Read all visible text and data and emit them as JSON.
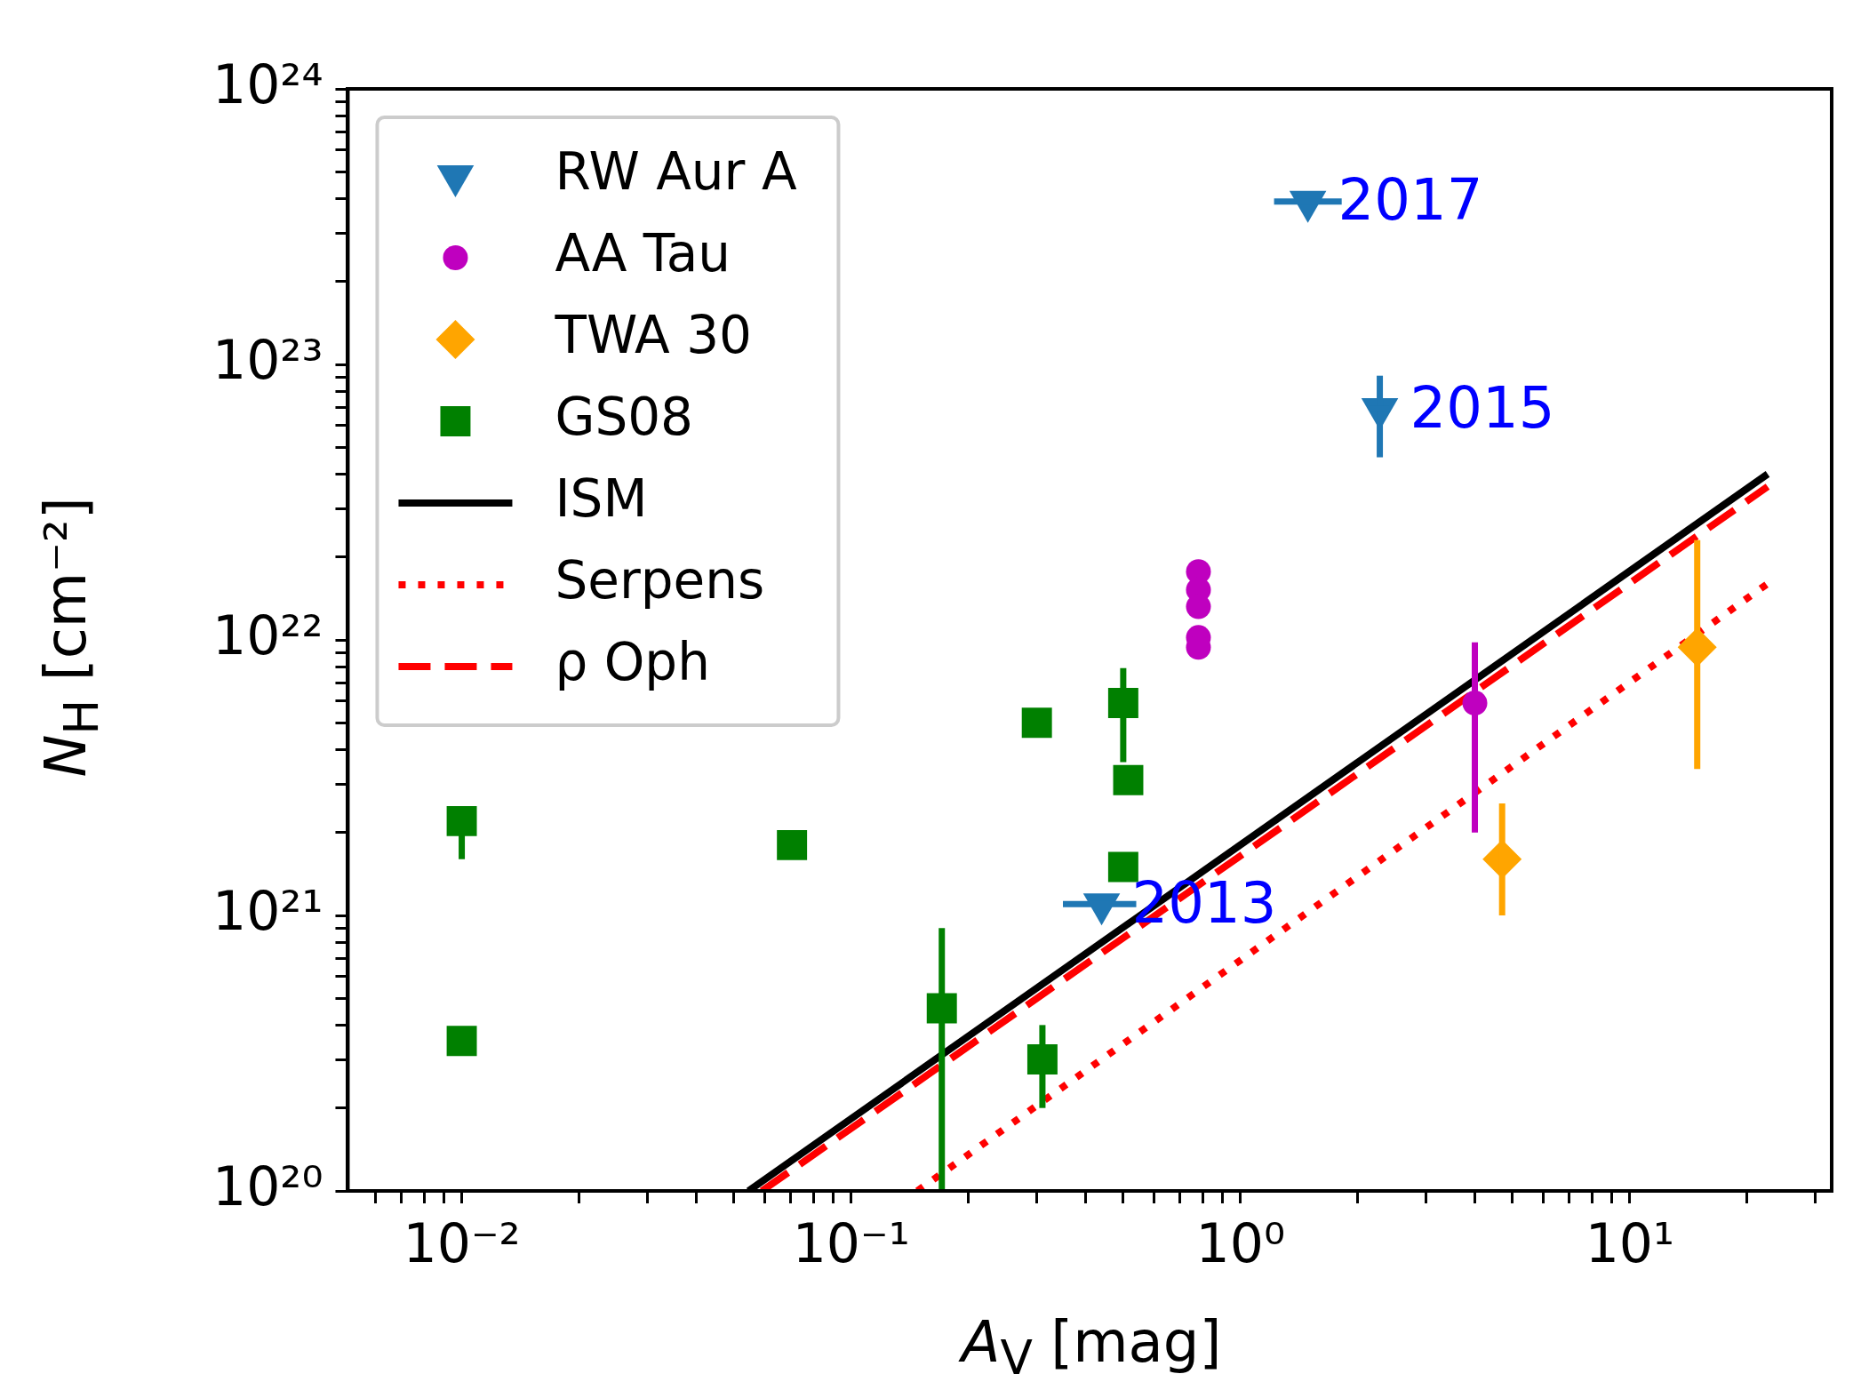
{
  "chart_data": {
    "type": "scatter",
    "xlabel": "A$_{V}$ [mag]",
    "ylabel": "N$_{H}$ [cm⁻²]",
    "log": "xy",
    "grid": false,
    "legend": "top left",
    "xlim": [
      0.0051,
      33
    ],
    "ylim": [
      1e+20,
      1e+24
    ],
    "xticks": [
      {
        "value": 0.006,
        "label": null
      },
      {
        "value": 0.007,
        "label": null
      },
      {
        "value": 0.008,
        "label": null
      },
      {
        "value": 0.009,
        "label": null
      },
      {
        "value": 0.01,
        "label": "10⁻²"
      },
      {
        "value": 0.02,
        "label": null
      },
      {
        "value": 0.03,
        "label": null
      },
      {
        "value": 0.04,
        "label": null
      },
      {
        "value": 0.05,
        "label": null
      },
      {
        "value": 0.06,
        "label": null
      },
      {
        "value": 0.07,
        "label": null
      },
      {
        "value": 0.08,
        "label": null
      },
      {
        "value": 0.09,
        "label": null
      },
      {
        "value": 0.1,
        "label": "10⁻¹"
      },
      {
        "value": 0.2,
        "label": null
      },
      {
        "value": 0.3,
        "label": null
      },
      {
        "value": 0.4,
        "label": null
      },
      {
        "value": 0.5,
        "label": null
      },
      {
        "value": 0.6,
        "label": null
      },
      {
        "value": 0.7,
        "label": null
      },
      {
        "value": 0.8,
        "label": null
      },
      {
        "value": 0.9,
        "label": null
      },
      {
        "value": 1,
        "label": "10⁰"
      },
      {
        "value": 2,
        "label": null
      },
      {
        "value": 3,
        "label": null
      },
      {
        "value": 4,
        "label": null
      },
      {
        "value": 5,
        "label": null
      },
      {
        "value": 6,
        "label": null
      },
      {
        "value": 7,
        "label": null
      },
      {
        "value": 8,
        "label": null
      },
      {
        "value": 9,
        "label": null
      },
      {
        "value": 10,
        "label": "10¹"
      },
      {
        "value": 20,
        "label": null
      },
      {
        "value": 30,
        "label": null
      }
    ],
    "yticks": [
      {
        "value": 1e+20,
        "label": "10²⁰"
      },
      {
        "value": 2e+20,
        "label": null
      },
      {
        "value": 3e+20,
        "label": null
      },
      {
        "value": 4e+20,
        "label": null
      },
      {
        "value": 5e+20,
        "label": null
      },
      {
        "value": 6e+20,
        "label": null
      },
      {
        "value": 7e+20,
        "label": null
      },
      {
        "value": 8e+20,
        "label": null
      },
      {
        "value": 9e+20,
        "label": null
      },
      {
        "value": 1e+21,
        "label": "10²¹"
      },
      {
        "value": 2e+21,
        "label": null
      },
      {
        "value": 3e+21,
        "label": null
      },
      {
        "value": 4e+21,
        "label": null
      },
      {
        "value": 5e+21,
        "label": null
      },
      {
        "value": 6e+21,
        "label": null
      },
      {
        "value": 7e+21,
        "label": null
      },
      {
        "value": 8e+21,
        "label": null
      },
      {
        "value": 9e+21,
        "label": null
      },
      {
        "value": 1e+22,
        "label": "10²²"
      },
      {
        "value": 2e+22,
        "label": null
      },
      {
        "value": 3e+22,
        "label": null
      },
      {
        "value": 4e+22,
        "label": null
      },
      {
        "value": 5e+22,
        "label": null
      },
      {
        "value": 6e+22,
        "label": null
      },
      {
        "value": 7e+22,
        "label": null
      },
      {
        "value": 8e+22,
        "label": null
      },
      {
        "value": 9e+22,
        "label": null
      },
      {
        "value": 1e+23,
        "label": "10²³"
      },
      {
        "value": 2e+23,
        "label": null
      },
      {
        "value": 3e+23,
        "label": null
      },
      {
        "value": 4e+23,
        "label": null
      },
      {
        "value": 5e+23,
        "label": null
      },
      {
        "value": 6e+23,
        "label": null
      },
      {
        "value": 7e+23,
        "label": null
      },
      {
        "value": 8e+23,
        "label": null
      },
      {
        "value": 9e+23,
        "label": null
      },
      {
        "value": 1e+24,
        "label": "10²⁴"
      }
    ],
    "series": [
      {
        "name": "RW Aur A",
        "marker": "triangle",
        "color": "#1f77b4",
        "x": [
          0.44,
          2.28,
          1.49
        ],
        "values": [
          1.1e+21,
          6.9e+22,
          3.9e+23
        ],
        "errors": [
          null,
          [
            4.6e+22,
            9.1e+22
          ],
          null
        ],
        "xerrors": [
          [
            0.35,
            0.54
          ],
          [
            2.15,
            2.42
          ],
          [
            1.22,
            1.82
          ]
        ]
      },
      {
        "name": "AA Tau",
        "marker": "circle",
        "color": "#bf00bf",
        "x": [
          0.78,
          0.78,
          0.78,
          0.78,
          0.78,
          4.0
        ],
        "values": [
          1.77e+22,
          1.52e+22,
          1.32e+22,
          1.02e+22,
          9.4e+21,
          5.9e+21
        ],
        "errors": [
          null,
          null,
          null,
          null,
          null,
          [
            2e+21,
            9.8e+21
          ]
        ]
      },
      {
        "name": "TWA 30",
        "marker": "diamond",
        "color": "#ffa500",
        "x": [
          4.7,
          14.9
        ],
        "values": [
          1.6e+21,
          9.4e+21
        ],
        "errors": [
          [
            1e+21,
            2.55e+21
          ],
          [
            3.4e+21,
            2.3e+22
          ]
        ]
      },
      {
        "name": "GS08",
        "marker": "square",
        "color": "#008000",
        "x": [
          0.01,
          0.01,
          0.0705,
          0.3,
          0.5,
          0.515,
          0.5,
          0.171,
          0.31
        ],
        "values": [
          2.2e+21,
          3.5e+20,
          1.8e+21,
          5e+21,
          5.9e+21,
          3.1e+21,
          1.5e+21,
          4.6e+20,
          3e+20
        ],
        "errors": [
          [
            1.6e+21,
            2.2e+21
          ],
          null,
          null,
          null,
          [
            3.6e+21,
            7.9e+21
          ],
          null,
          null,
          [
            1e+20,
            9e+20
          ],
          [
            2e+20,
            4e+20
          ]
        ]
      },
      {
        "name": "ISM",
        "type": "line",
        "marker": "none",
        "line_style": "solid",
        "color": "#000000",
        "x": [
          0.0545,
          22.6
        ],
        "values": [
          1e+20,
          4e+22
        ]
      },
      {
        "name": "Serpens",
        "type": "line",
        "marker": "none",
        "line_style": "dotted",
        "color": "#ff0000",
        "x": [
          0.148,
          22.6
        ],
        "values": [
          1e+20,
          1.6e+22
        ]
      },
      {
        "name": "ρ Oph",
        "type": "line",
        "marker": "none",
        "line_style": "dashed",
        "color": "#ff0000",
        "x": [
          0.059,
          22.6
        ],
        "values": [
          1e+20,
          3.6e+22
        ]
      }
    ],
    "annotations": [
      {
        "text": "2013",
        "x": 0.44,
        "y": 1.1e+21
      },
      {
        "text": "2015",
        "x": 2.28,
        "y": 6.9e+22
      },
      {
        "text": "2017",
        "x": 1.49,
        "y": 3.9e+23
      }
    ]
  }
}
